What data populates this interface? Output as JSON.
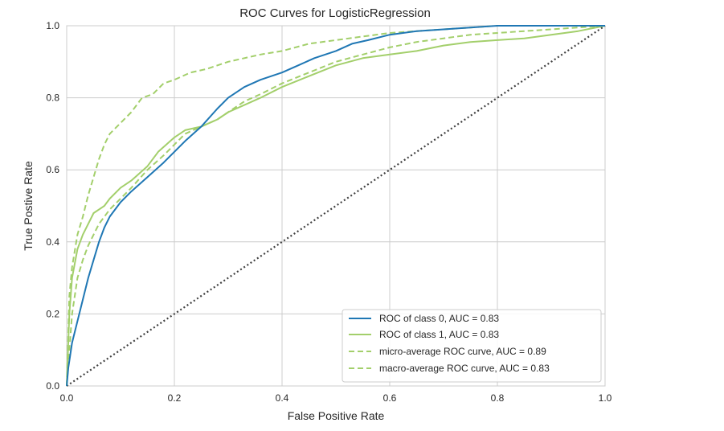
{
  "chart_data": {
    "type": "line",
    "title": "ROC Curves for LogisticRegression",
    "xlabel": "False Positive Rate",
    "ylabel": "True Postive Rate",
    "xlim": [
      0,
      1
    ],
    "ylim": [
      0,
      1
    ],
    "xticks": [
      "0.0",
      "0.2",
      "0.4",
      "0.6",
      "0.8",
      "1.0"
    ],
    "yticks": [
      "0.0",
      "0.2",
      "0.4",
      "0.6",
      "0.8",
      "1.0"
    ],
    "grid": true,
    "legend_position": "lower-right",
    "series": [
      {
        "name": "ROC of class 0, AUC = 0.83",
        "color": "#1f77b4",
        "style": "solid",
        "x": [
          0,
          0.003,
          0.01,
          0.02,
          0.03,
          0.04,
          0.05,
          0.06,
          0.07,
          0.08,
          0.1,
          0.12,
          0.15,
          0.18,
          0.2,
          0.22,
          0.25,
          0.28,
          0.3,
          0.33,
          0.36,
          0.4,
          0.43,
          0.46,
          0.5,
          0.53,
          0.56,
          0.6,
          0.65,
          0.7,
          0.75,
          0.8,
          0.85,
          0.9,
          0.95,
          1.0
        ],
        "y": [
          0,
          0.05,
          0.12,
          0.18,
          0.24,
          0.3,
          0.35,
          0.4,
          0.44,
          0.47,
          0.51,
          0.54,
          0.58,
          0.62,
          0.65,
          0.68,
          0.72,
          0.77,
          0.8,
          0.83,
          0.85,
          0.87,
          0.89,
          0.91,
          0.93,
          0.95,
          0.96,
          0.975,
          0.985,
          0.99,
          0.995,
          1.0,
          1.0,
          1.0,
          1.0,
          1.0
        ]
      },
      {
        "name": "ROC of class 1, AUC = 0.83",
        "color": "#a3cf6b",
        "style": "solid",
        "x": [
          0,
          0.005,
          0.01,
          0.02,
          0.03,
          0.04,
          0.05,
          0.07,
          0.08,
          0.1,
          0.12,
          0.15,
          0.17,
          0.2,
          0.22,
          0.25,
          0.28,
          0.3,
          0.33,
          0.36,
          0.4,
          0.45,
          0.5,
          0.55,
          0.6,
          0.65,
          0.7,
          0.75,
          0.8,
          0.85,
          0.9,
          0.95,
          1.0
        ],
        "y": [
          0,
          0.2,
          0.3,
          0.38,
          0.42,
          0.45,
          0.48,
          0.5,
          0.52,
          0.55,
          0.57,
          0.61,
          0.65,
          0.69,
          0.71,
          0.72,
          0.74,
          0.76,
          0.78,
          0.8,
          0.83,
          0.86,
          0.89,
          0.91,
          0.92,
          0.93,
          0.945,
          0.955,
          0.96,
          0.965,
          0.975,
          0.985,
          1.0
        ]
      },
      {
        "name": "micro-average ROC curve, AUC = 0.89",
        "color": "#a3cf6b",
        "style": "dashed",
        "x": [
          0,
          0.005,
          0.01,
          0.02,
          0.03,
          0.04,
          0.05,
          0.06,
          0.07,
          0.08,
          0.1,
          0.12,
          0.14,
          0.16,
          0.18,
          0.2,
          0.23,
          0.26,
          0.3,
          0.33,
          0.36,
          0.4,
          0.45,
          0.5,
          0.55,
          0.6,
          0.65,
          0.7,
          0.75,
          0.8,
          0.85,
          0.9,
          0.95,
          1.0
        ],
        "y": [
          0,
          0.25,
          0.33,
          0.42,
          0.47,
          0.53,
          0.58,
          0.63,
          0.67,
          0.7,
          0.73,
          0.76,
          0.8,
          0.81,
          0.84,
          0.85,
          0.87,
          0.88,
          0.9,
          0.91,
          0.92,
          0.93,
          0.95,
          0.96,
          0.97,
          0.98,
          0.985,
          0.99,
          0.995,
          1.0,
          1.0,
          1.0,
          1.0,
          1.0
        ]
      },
      {
        "name": "macro-average ROC curve, AUC = 0.83",
        "color": "#a3cf6b",
        "style": "dashed",
        "x": [
          0,
          0.005,
          0.01,
          0.02,
          0.03,
          0.04,
          0.05,
          0.06,
          0.08,
          0.1,
          0.12,
          0.15,
          0.18,
          0.2,
          0.22,
          0.25,
          0.28,
          0.3,
          0.33,
          0.36,
          0.4,
          0.45,
          0.5,
          0.55,
          0.6,
          0.65,
          0.7,
          0.75,
          0.8,
          0.85,
          0.9,
          0.95,
          1.0
        ],
        "y": [
          0,
          0.1,
          0.2,
          0.3,
          0.35,
          0.39,
          0.42,
          0.45,
          0.49,
          0.52,
          0.55,
          0.6,
          0.64,
          0.67,
          0.7,
          0.72,
          0.74,
          0.76,
          0.79,
          0.81,
          0.84,
          0.87,
          0.9,
          0.92,
          0.94,
          0.955,
          0.965,
          0.975,
          0.98,
          0.985,
          0.99,
          0.995,
          1.0
        ]
      },
      {
        "name": "",
        "color": "#404040",
        "style": "dotted",
        "x": [
          0,
          1
        ],
        "y": [
          0,
          1
        ]
      }
    ]
  },
  "colors": {
    "grid": "#cccccc",
    "spine": "#cccccc",
    "text": "#262626"
  }
}
